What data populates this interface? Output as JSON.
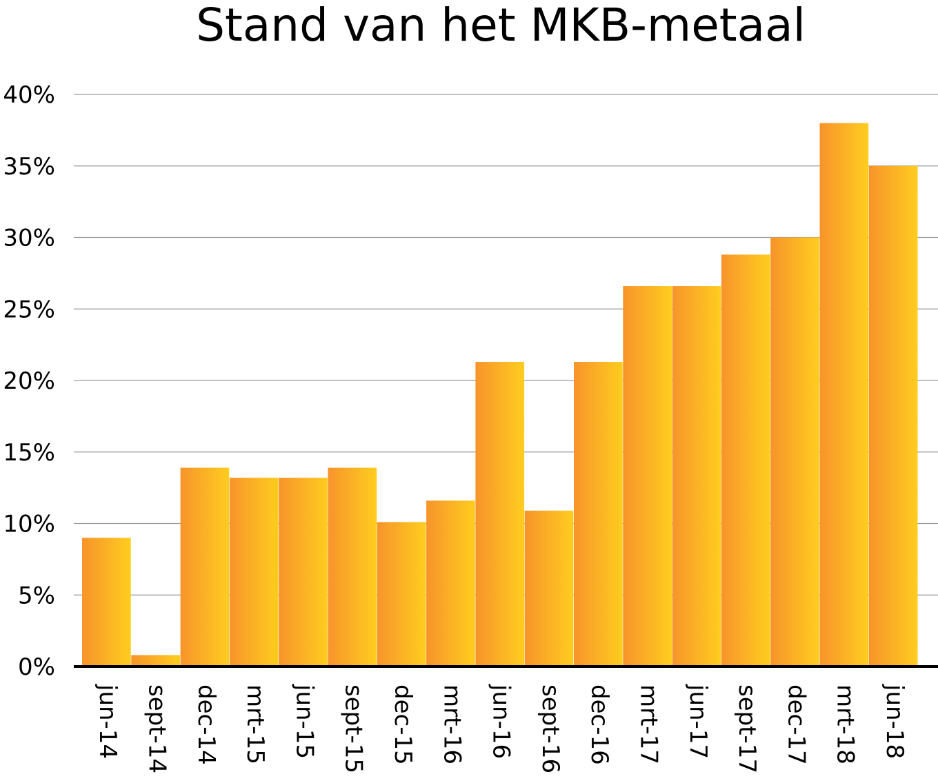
{
  "chart_data": {
    "type": "bar",
    "title": "Stand van het MKB-metaal",
    "xlabel": "",
    "ylabel": "",
    "categories": [
      "jun-14",
      "sept-14",
      "dec-14",
      "mrt-15",
      "jun-15",
      "sept-15",
      "dec-15",
      "mrt-16",
      "jun-16",
      "sept-16",
      "dec-16",
      "mrt-17",
      "jun-17",
      "sept-17",
      "dec-17",
      "mrt-18",
      "jun-18"
    ],
    "values": [
      9.0,
      0.8,
      13.9,
      13.2,
      13.2,
      13.9,
      10.1,
      11.6,
      21.3,
      10.9,
      21.3,
      26.6,
      26.6,
      28.8,
      30.0,
      38.0,
      35.0
    ],
    "ylim": [
      0,
      40
    ],
    "yticks": [
      "0%",
      "5%",
      "10%",
      "15%",
      "20%",
      "25%",
      "30%",
      "35%",
      "40%"
    ],
    "grid": true,
    "legend": "none",
    "colors": {
      "bar_start": "#F7942B",
      "bar_end": "#FFCD1F",
      "grid": "#9A9A9A",
      "axis": "#000000"
    }
  }
}
